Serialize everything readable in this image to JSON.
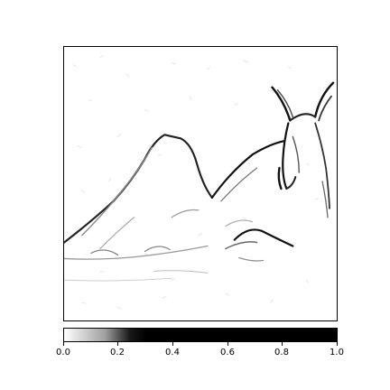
{
  "colorbar": {
    "ticks": [
      "0.0",
      "0.2",
      "0.4",
      "0.6",
      "0.8",
      "1.0"
    ],
    "range": [
      0.0,
      1.0
    ],
    "colormap": "white-to-black"
  },
  "image": {
    "description_icon": "edge-map-image"
  }
}
